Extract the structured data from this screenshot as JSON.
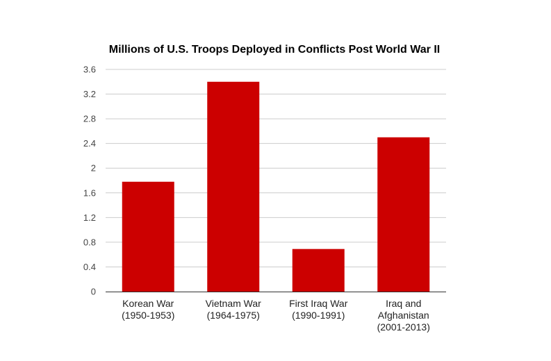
{
  "chart_data": {
    "type": "bar",
    "title": "Millions of U.S. Troops Deployed in Conflicts Post World War II",
    "xlabel": "",
    "ylabel": "",
    "categories": [
      [
        "Korean War",
        "(1950-1953)"
      ],
      [
        "Vietnam War",
        "(1964-1975)"
      ],
      [
        "First Iraq War",
        "(1990-1991)"
      ],
      [
        "Iraq and",
        "Afghanistan",
        "(2001-2013)"
      ]
    ],
    "values": [
      1.78,
      3.4,
      0.69,
      2.5
    ],
    "ylim": [
      0,
      3.6
    ],
    "yticks": [
      "0",
      "0.4",
      "0.8",
      "1.2",
      "1.6",
      "2",
      "2.4",
      "2.8",
      "3.2",
      "3.6"
    ],
    "grid": true,
    "legend": "none",
    "bar_color": "#cc0000"
  }
}
